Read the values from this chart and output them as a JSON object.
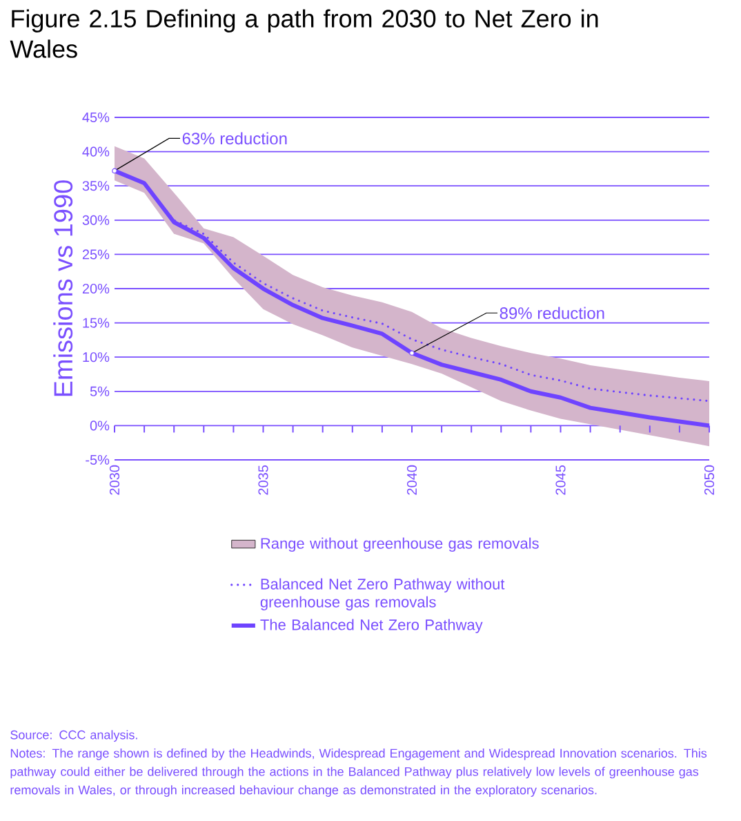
{
  "chart_data": {
    "type": "line",
    "title": "Figure 2.15 Defining a path from 2030 to Net Zero in Wales",
    "ylabel": "Emissions vs 1990",
    "x": [
      2030,
      2031,
      2032,
      2033,
      2034,
      2035,
      2036,
      2037,
      2038,
      2039,
      2040,
      2041,
      2042,
      2043,
      2044,
      2045,
      2046,
      2047,
      2048,
      2049,
      2050
    ],
    "xlim": [
      2030,
      2050
    ],
    "xticks": [
      2030,
      {
        "value": 2031,
        "label": null
      },
      {
        "value": 2032,
        "label": null
      },
      {
        "value": 2033,
        "label": null
      },
      {
        "value": 2034,
        "label": null
      },
      2035,
      {
        "value": 2036,
        "label": null
      },
      {
        "value": 2037,
        "label": null
      },
      {
        "value": 2038,
        "label": null
      },
      {
        "value": 2039,
        "label": null
      },
      2040,
      {
        "value": 2041,
        "label": null
      },
      {
        "value": 2042,
        "label": null
      },
      {
        "value": 2043,
        "label": null
      },
      {
        "value": 2044,
        "label": null
      },
      2045,
      {
        "value": 2046,
        "label": null
      },
      {
        "value": 2047,
        "label": null
      },
      {
        "value": 2048,
        "label": null
      },
      {
        "value": 2049,
        "label": null
      },
      2050
    ],
    "ylim": [
      -5,
      45
    ],
    "yticks": [
      {
        "value": -5,
        "label": "-5%"
      },
      {
        "value": 0,
        "label": "0%"
      },
      {
        "value": 5,
        "label": "5%"
      },
      {
        "value": 10,
        "label": "10%"
      },
      {
        "value": 15,
        "label": "15%"
      },
      {
        "value": 20,
        "label": "20%"
      },
      {
        "value": 25,
        "label": "25%"
      },
      {
        "value": 30,
        "label": "30%"
      },
      {
        "value": 35,
        "label": "35%"
      },
      {
        "value": 40,
        "label": "40%"
      },
      {
        "value": 45,
        "label": "45%"
      }
    ],
    "grid": "y",
    "legend": "bottom",
    "series": [
      {
        "name": "Range without greenhouse gas removals",
        "type": "area",
        "color": "#d4b5cb",
        "values": [
          null,
          null,
          null,
          null,
          null,
          null,
          null,
          null,
          null,
          null,
          null,
          null,
          null,
          null,
          null,
          null,
          null,
          null,
          null,
          null,
          null
        ],
        "lower": [
          35.8,
          34.0,
          28.0,
          26.6,
          21.5,
          17.0,
          14.8,
          13.2,
          11.4,
          10.2,
          9.0,
          7.6,
          5.6,
          3.6,
          2.2,
          1.0,
          0.2,
          -0.6,
          -1.4,
          -2.2,
          -3.0
        ],
        "upper": [
          40.8,
          39.0,
          34.0,
          28.8,
          27.5,
          24.8,
          22.0,
          20.2,
          19.0,
          18.0,
          16.6,
          14.2,
          12.8,
          11.6,
          10.6,
          9.8,
          8.8,
          8.2,
          7.6,
          7.0,
          6.5
        ]
      },
      {
        "name": "Balanced Net Zero Pathway without greenhouse gas removals",
        "type": "line",
        "color": "#6e44ff",
        "line_style": "dotted",
        "values": [
          37.2,
          35.4,
          30.0,
          28.0,
          23.8,
          20.8,
          18.6,
          16.8,
          15.8,
          14.9,
          12.6,
          11.1,
          10.0,
          9.0,
          7.4,
          6.6,
          5.4,
          4.9,
          4.4,
          4.0,
          3.6
        ]
      },
      {
        "name": "The Balanced Net Zero Pathway",
        "type": "line",
        "color": "#6e44ff",
        "line_style": "solid",
        "values": [
          37.2,
          35.4,
          29.7,
          27.4,
          23.0,
          20.0,
          17.6,
          15.7,
          14.6,
          13.4,
          10.6,
          8.9,
          7.8,
          6.7,
          5.0,
          4.1,
          2.6,
          1.9,
          1.2,
          0.6,
          0.0
        ]
      }
    ],
    "annotations": [
      {
        "text": "63% reduction",
        "x": 2030,
        "y": 37.2
      },
      {
        "text": "89% reduction",
        "x": 2040,
        "y": 10.6
      },
      "Source: CCC analysis.",
      "Notes: The range shown is defined by the Headwinds, Widespread Engagement and Widespread Innovation scenarios. This pathway could either be delivered through the actions in the Balanced Pathway plus relatively low levels of greenhouse gas removals in Wales, or through increased behaviour change as demonstrated in the exploratory scenarios."
    ]
  }
}
